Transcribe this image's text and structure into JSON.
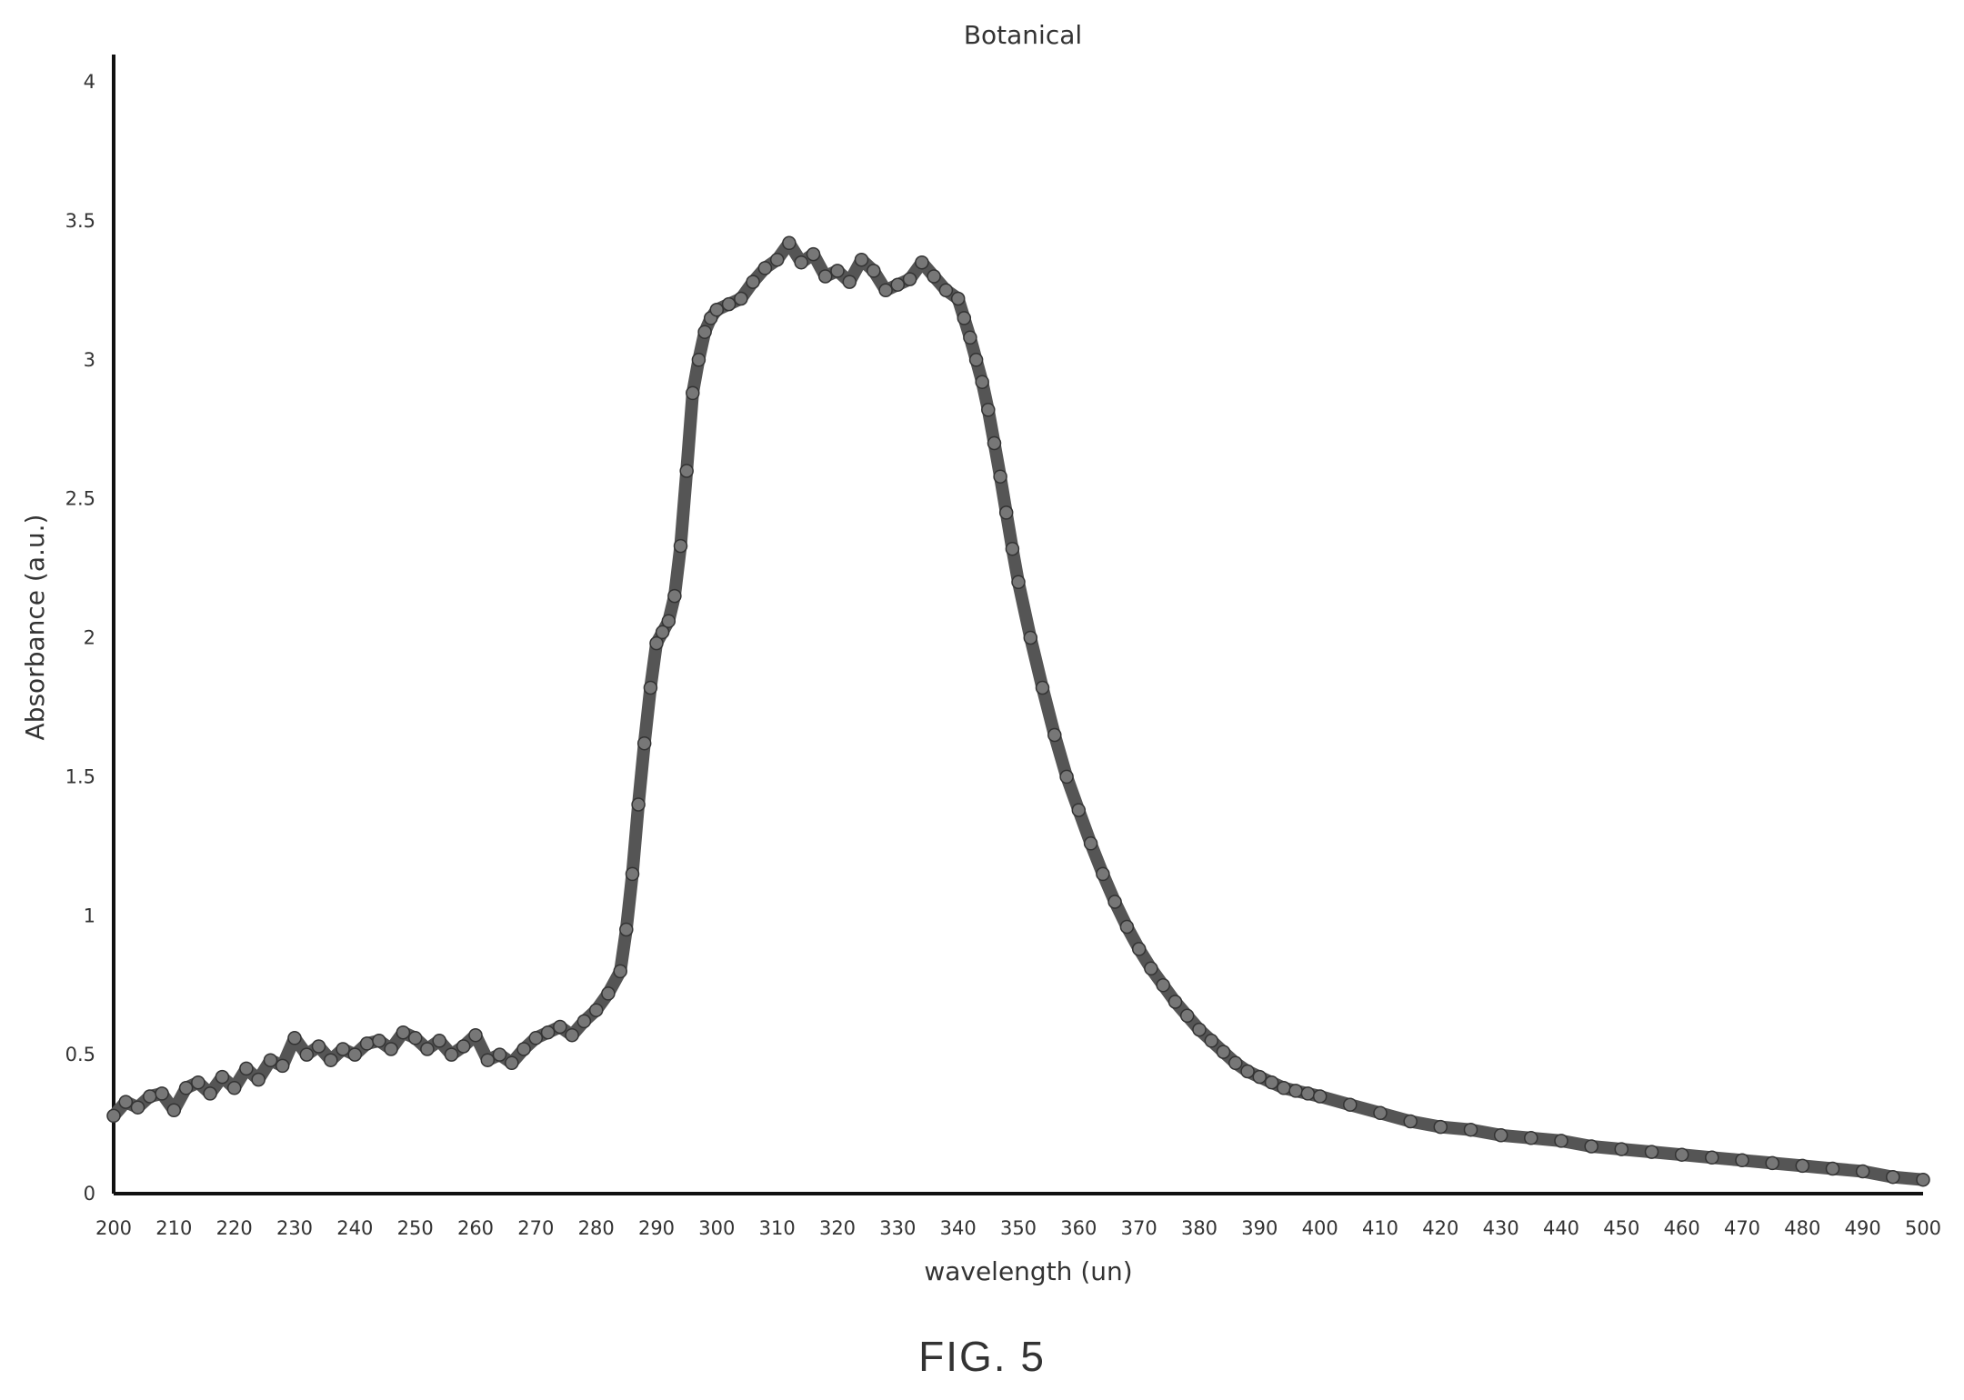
{
  "figure": {
    "caption": "FIG. 5"
  },
  "chart_data": {
    "type": "line",
    "title": "Botanical",
    "xlabel": "wavelength (un)",
    "ylabel": "Absorbance (a.u.)",
    "xlim": [
      200,
      500
    ],
    "ylim": [
      0,
      4
    ],
    "xticks": [
      200,
      210,
      220,
      230,
      240,
      250,
      260,
      270,
      280,
      290,
      300,
      310,
      320,
      330,
      340,
      350,
      360,
      370,
      380,
      390,
      400,
      410,
      420,
      430,
      440,
      450,
      460,
      470,
      480,
      490,
      500
    ],
    "yticks": [
      0,
      0.5,
      1,
      1.5,
      2,
      2.5,
      3,
      3.5,
      4
    ],
    "grid": false,
    "line_color": "#555555",
    "series": [
      {
        "x": [
          200,
          202,
          204,
          206,
          208,
          210,
          212,
          214,
          216,
          218,
          220,
          222,
          224,
          226,
          228,
          230,
          232,
          234,
          236,
          238,
          240,
          242,
          244,
          246,
          248,
          250,
          252,
          254,
          256,
          258,
          260,
          262,
          264,
          266,
          268,
          270,
          272,
          274,
          276,
          278,
          280,
          282,
          284,
          285,
          286,
          287,
          288,
          289,
          290,
          291,
          292,
          293,
          294,
          295,
          296,
          297,
          298,
          299,
          300,
          302,
          304,
          306,
          308,
          310,
          312,
          314,
          316,
          318,
          320,
          322,
          324,
          326,
          328,
          330,
          332,
          334,
          336,
          338,
          340,
          341,
          342,
          343,
          344,
          345,
          346,
          347,
          348,
          349,
          350,
          352,
          354,
          356,
          358,
          360,
          362,
          364,
          366,
          368,
          370,
          372,
          374,
          376,
          378,
          380,
          382,
          384,
          386,
          388,
          390,
          392,
          394,
          396,
          398,
          400,
          405,
          410,
          415,
          420,
          425,
          430,
          435,
          440,
          445,
          450,
          455,
          460,
          465,
          470,
          475,
          480,
          485,
          490,
          495,
          500
        ],
        "y": [
          0.28,
          0.33,
          0.31,
          0.35,
          0.36,
          0.3,
          0.38,
          0.4,
          0.36,
          0.42,
          0.38,
          0.45,
          0.41,
          0.48,
          0.46,
          0.56,
          0.5,
          0.53,
          0.48,
          0.52,
          0.5,
          0.54,
          0.55,
          0.52,
          0.58,
          0.56,
          0.52,
          0.55,
          0.5,
          0.53,
          0.57,
          0.48,
          0.5,
          0.47,
          0.52,
          0.56,
          0.58,
          0.6,
          0.57,
          0.62,
          0.66,
          0.72,
          0.8,
          0.95,
          1.15,
          1.4,
          1.62,
          1.82,
          1.98,
          2.02,
          2.06,
          2.15,
          2.33,
          2.6,
          2.88,
          3.0,
          3.1,
          3.15,
          3.18,
          3.2,
          3.22,
          3.28,
          3.33,
          3.36,
          3.42,
          3.35,
          3.38,
          3.3,
          3.32,
          3.28,
          3.36,
          3.32,
          3.25,
          3.27,
          3.29,
          3.35,
          3.3,
          3.25,
          3.22,
          3.15,
          3.08,
          3.0,
          2.92,
          2.82,
          2.7,
          2.58,
          2.45,
          2.32,
          2.2,
          2.0,
          1.82,
          1.65,
          1.5,
          1.38,
          1.26,
          1.15,
          1.05,
          0.96,
          0.88,
          0.81,
          0.75,
          0.69,
          0.64,
          0.59,
          0.55,
          0.51,
          0.47,
          0.44,
          0.42,
          0.4,
          0.38,
          0.37,
          0.36,
          0.35,
          0.32,
          0.29,
          0.26,
          0.24,
          0.23,
          0.21,
          0.2,
          0.19,
          0.17,
          0.16,
          0.15,
          0.14,
          0.13,
          0.12,
          0.11,
          0.1,
          0.09,
          0.08,
          0.06,
          0.05
        ]
      }
    ]
  }
}
